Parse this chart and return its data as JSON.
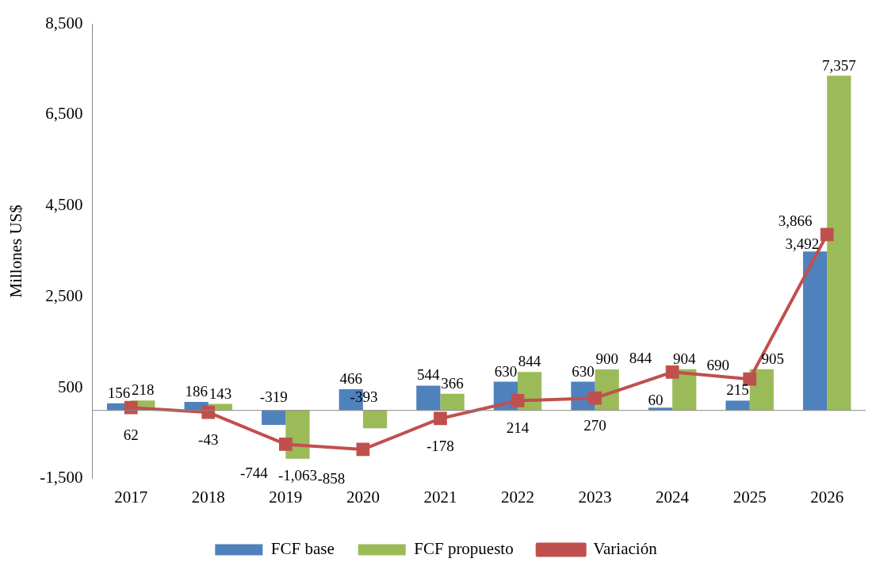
{
  "chart_data": {
    "type": "bar",
    "ylabel": "Millones US$",
    "categories": [
      "2017",
      "2018",
      "2019",
      "2020",
      "2021",
      "2022",
      "2023",
      "2024",
      "2025",
      "2026"
    ],
    "series": [
      {
        "name": "FCF base",
        "color": "#4f81bd",
        "values": [
          156,
          186,
          -319,
          466,
          544,
          630,
          630,
          60,
          215,
          3492
        ],
        "value_labels": [
          "156",
          "186",
          "-319",
          "466",
          "544",
          "630",
          "630",
          "60",
          "215",
          "3,492"
        ]
      },
      {
        "name": "FCF propuesto",
        "color": "#9bbb59",
        "values": [
          218,
          143,
          -1063,
          -393,
          366,
          844,
          900,
          904,
          905,
          7357
        ],
        "value_labels": [
          "218",
          "143",
          "-1,063",
          "-393",
          "366",
          "844",
          "900",
          "904",
          "905",
          "7,357"
        ]
      },
      {
        "name": "Variación",
        "type": "line",
        "color": "#c0504d",
        "marker": "square",
        "values": [
          62,
          -43,
          -744,
          -858,
          -178,
          214,
          270,
          844,
          690,
          3866
        ],
        "value_labels": [
          "62",
          "-43",
          "-744",
          "-858",
          "-178",
          "214",
          "270",
          "844",
          "690",
          "3,866"
        ]
      }
    ],
    "ylim": [
      -1500,
      8500
    ],
    "yticks": [
      {
        "value": -1500,
        "label": "-1,500"
      },
      {
        "value": 500,
        "label": "500"
      },
      {
        "value": 2500,
        "label": "2,500"
      },
      {
        "value": 4500,
        "label": "4,500"
      },
      {
        "value": 6500,
        "label": "6,500"
      },
      {
        "value": 8500,
        "label": "8,500"
      }
    ],
    "grid": false,
    "legend": "bottom"
  }
}
